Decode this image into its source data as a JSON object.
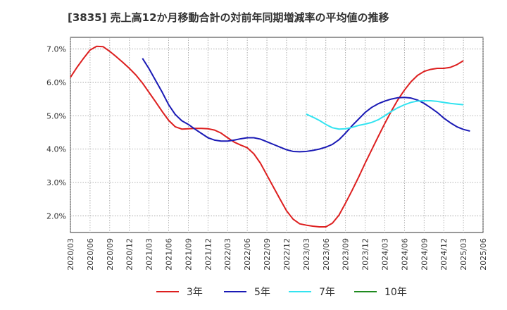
{
  "chart_data": {
    "type": "line",
    "title": "[3835]  売上高12か月移動合計の対前年同期増減率の平均値の推移",
    "xlabel": "",
    "ylabel": "",
    "ylim": [
      1.5,
      7.35
    ],
    "y_ticks": [
      "2.0%",
      "3.0%",
      "4.0%",
      "5.0%",
      "6.0%",
      "7.0%"
    ],
    "y_tick_values": [
      2.0,
      3.0,
      4.0,
      5.0,
      6.0,
      7.0
    ],
    "x_ticks": [
      "2020/03",
      "2020/06",
      "2020/09",
      "2020/12",
      "2021/03",
      "2021/06",
      "2021/09",
      "2021/12",
      "2022/03",
      "2022/06",
      "2022/09",
      "2022/12",
      "2023/03",
      "2023/06",
      "2023/09",
      "2023/12",
      "2024/03",
      "2024/06",
      "2024/09",
      "2024/12",
      "2025/03",
      "2025/06"
    ],
    "grid": true,
    "legend_position": "bottom",
    "series": [
      {
        "name": "3年",
        "color": "#dd1f1f",
        "points": [
          [
            "2020/03",
            6.15
          ],
          [
            "2020/04",
            6.45
          ],
          [
            "2020/05",
            6.72
          ],
          [
            "2020/06",
            6.97
          ],
          [
            "2020/07",
            7.08
          ],
          [
            "2020/08",
            7.07
          ],
          [
            "2020/09",
            6.93
          ],
          [
            "2020/10",
            6.77
          ],
          [
            "2020/11",
            6.6
          ],
          [
            "2020/12",
            6.42
          ],
          [
            "2021/01",
            6.22
          ],
          [
            "2021/02",
            5.98
          ],
          [
            "2021/03",
            5.7
          ],
          [
            "2021/04",
            5.42
          ],
          [
            "2021/05",
            5.13
          ],
          [
            "2021/06",
            4.86
          ],
          [
            "2021/07",
            4.67
          ],
          [
            "2021/08",
            4.6
          ],
          [
            "2021/09",
            4.61
          ],
          [
            "2021/10",
            4.62
          ],
          [
            "2021/11",
            4.62
          ],
          [
            "2021/12",
            4.61
          ],
          [
            "2022/01",
            4.57
          ],
          [
            "2022/02",
            4.48
          ],
          [
            "2022/03",
            4.34
          ],
          [
            "2022/04",
            4.21
          ],
          [
            "2022/05",
            4.12
          ],
          [
            "2022/06",
            4.04
          ],
          [
            "2022/07",
            3.86
          ],
          [
            "2022/08",
            3.58
          ],
          [
            "2022/09",
            3.22
          ],
          [
            "2022/10",
            2.86
          ],
          [
            "2022/11",
            2.5
          ],
          [
            "2022/12",
            2.15
          ],
          [
            "2023/01",
            1.9
          ],
          [
            "2023/02",
            1.76
          ],
          [
            "2023/03",
            1.72
          ],
          [
            "2023/04",
            1.69
          ],
          [
            "2023/05",
            1.67
          ],
          [
            "2023/06",
            1.67
          ],
          [
            "2023/07",
            1.78
          ],
          [
            "2023/08",
            2.02
          ],
          [
            "2023/09",
            2.38
          ],
          [
            "2023/10",
            2.76
          ],
          [
            "2023/11",
            3.16
          ],
          [
            "2023/12",
            3.58
          ],
          [
            "2024/01",
            3.98
          ],
          [
            "2024/02",
            4.38
          ],
          [
            "2024/03",
            4.77
          ],
          [
            "2024/04",
            5.14
          ],
          [
            "2024/05",
            5.48
          ],
          [
            "2024/06",
            5.77
          ],
          [
            "2024/07",
            6.02
          ],
          [
            "2024/08",
            6.21
          ],
          [
            "2024/09",
            6.33
          ],
          [
            "2024/10",
            6.39
          ],
          [
            "2024/11",
            6.42
          ],
          [
            "2024/12",
            6.42
          ],
          [
            "2025/01",
            6.45
          ],
          [
            "2025/02",
            6.53
          ],
          [
            "2025/03",
            6.65
          ]
        ]
      },
      {
        "name": "5年",
        "color": "#1a1ab5",
        "points": [
          [
            "2021/02",
            6.72
          ],
          [
            "2021/03",
            6.41
          ],
          [
            "2021/04",
            6.06
          ],
          [
            "2021/05",
            5.71
          ],
          [
            "2021/06",
            5.33
          ],
          [
            "2021/07",
            5.04
          ],
          [
            "2021/08",
            4.85
          ],
          [
            "2021/09",
            4.74
          ],
          [
            "2021/10",
            4.6
          ],
          [
            "2021/11",
            4.47
          ],
          [
            "2021/12",
            4.34
          ],
          [
            "2022/01",
            4.27
          ],
          [
            "2022/02",
            4.24
          ],
          [
            "2022/03",
            4.24
          ],
          [
            "2022/04",
            4.27
          ],
          [
            "2022/05",
            4.31
          ],
          [
            "2022/06",
            4.34
          ],
          [
            "2022/07",
            4.34
          ],
          [
            "2022/08",
            4.3
          ],
          [
            "2022/09",
            4.22
          ],
          [
            "2022/10",
            4.14
          ],
          [
            "2022/11",
            4.06
          ],
          [
            "2022/12",
            3.98
          ],
          [
            "2023/01",
            3.93
          ],
          [
            "2023/02",
            3.92
          ],
          [
            "2023/03",
            3.93
          ],
          [
            "2023/04",
            3.96
          ],
          [
            "2023/05",
            4.0
          ],
          [
            "2023/06",
            4.06
          ],
          [
            "2023/07",
            4.14
          ],
          [
            "2023/08",
            4.28
          ],
          [
            "2023/09",
            4.48
          ],
          [
            "2023/10",
            4.7
          ],
          [
            "2023/11",
            4.9
          ],
          [
            "2023/12",
            5.1
          ],
          [
            "2024/01",
            5.25
          ],
          [
            "2024/02",
            5.36
          ],
          [
            "2024/03",
            5.44
          ],
          [
            "2024/04",
            5.5
          ],
          [
            "2024/05",
            5.54
          ],
          [
            "2024/06",
            5.55
          ],
          [
            "2024/07",
            5.53
          ],
          [
            "2024/08",
            5.47
          ],
          [
            "2024/09",
            5.37
          ],
          [
            "2024/10",
            5.24
          ],
          [
            "2024/11",
            5.1
          ],
          [
            "2024/12",
            4.93
          ],
          [
            "2025/01",
            4.79
          ],
          [
            "2025/02",
            4.67
          ],
          [
            "2025/03",
            4.59
          ],
          [
            "2025/04",
            4.54
          ]
        ]
      },
      {
        "name": "7年",
        "color": "#33e3f0",
        "points": [
          [
            "2023/03",
            5.05
          ],
          [
            "2023/04",
            4.96
          ],
          [
            "2023/05",
            4.86
          ],
          [
            "2023/06",
            4.74
          ],
          [
            "2023/07",
            4.64
          ],
          [
            "2023/08",
            4.6
          ],
          [
            "2023/09",
            4.61
          ],
          [
            "2023/10",
            4.65
          ],
          [
            "2023/11",
            4.71
          ],
          [
            "2023/12",
            4.75
          ],
          [
            "2024/01",
            4.8
          ],
          [
            "2024/02",
            4.88
          ],
          [
            "2024/03",
            5.0
          ],
          [
            "2024/04",
            5.13
          ],
          [
            "2024/05",
            5.24
          ],
          [
            "2024/06",
            5.33
          ],
          [
            "2024/07",
            5.4
          ],
          [
            "2024/08",
            5.44
          ],
          [
            "2024/09",
            5.45
          ],
          [
            "2024/10",
            5.45
          ],
          [
            "2024/11",
            5.43
          ],
          [
            "2024/12",
            5.4
          ],
          [
            "2025/01",
            5.37
          ],
          [
            "2025/02",
            5.35
          ],
          [
            "2025/03",
            5.33
          ]
        ]
      },
      {
        "name": "10年",
        "color": "#1f8a1f",
        "points": []
      }
    ]
  }
}
